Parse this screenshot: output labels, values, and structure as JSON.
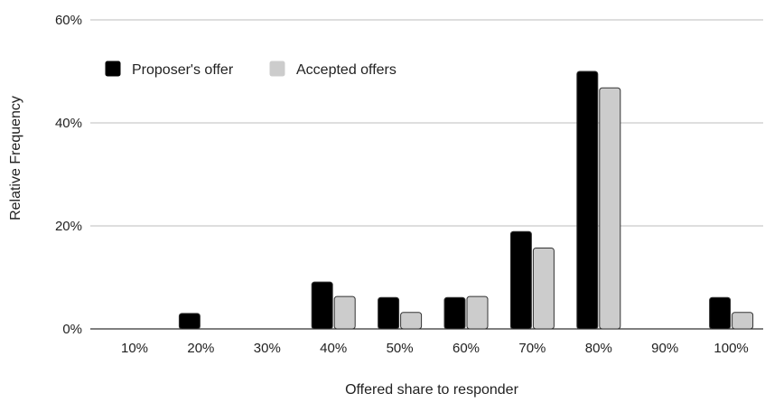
{
  "chart_data": {
    "type": "bar",
    "title": "",
    "xlabel": "Offered share to responder",
    "ylabel": "Relative Frequency",
    "ylim": [
      0,
      60
    ],
    "y_ticks": [
      0,
      20,
      40,
      60
    ],
    "y_tick_suffix": "%",
    "grid": true,
    "legend_position": "top-left",
    "categories": [
      "10%",
      "20%",
      "30%",
      "40%",
      "50%",
      "60%",
      "70%",
      "80%",
      "90%",
      "100%"
    ],
    "series": [
      {
        "name": "Proposer's offer",
        "color": "#000000",
        "values": [
          0,
          3,
          0,
          9.1,
          6.1,
          6.1,
          18.9,
          50.0,
          0,
          6.1
        ]
      },
      {
        "name": "Accepted offers",
        "color": "#cccccc",
        "values": [
          0,
          0,
          0,
          6.3,
          3.2,
          6.3,
          15.7,
          46.8,
          0,
          3.2
        ]
      }
    ]
  }
}
